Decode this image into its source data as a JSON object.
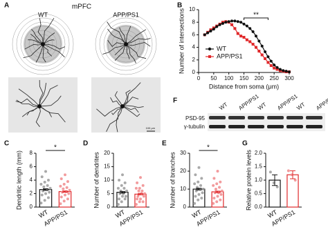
{
  "panels": {
    "labels": [
      "A",
      "B",
      "C",
      "D",
      "E",
      "F",
      "G"
    ],
    "a": {
      "title": "mPFC",
      "groups": [
        "WT",
        "APP/PS1"
      ],
      "scale_bar": "100 μm"
    },
    "f": {
      "lanes": [
        "WT",
        "APP/PS1",
        "WT",
        "APP/PS1",
        "WT",
        "APP/PS1"
      ],
      "rows": [
        "PSD-95",
        "γ-tubulin"
      ]
    }
  },
  "chart_data": [
    {
      "type": "line",
      "x_label": "Distance from soma (μm)",
      "y_label": "Number of intersections",
      "x": [
        20,
        30,
        40,
        50,
        60,
        70,
        80,
        90,
        100,
        110,
        120,
        130,
        140,
        150,
        160,
        170,
        180,
        190,
        200,
        210,
        220,
        230,
        240,
        250,
        260,
        270,
        280,
        290,
        300
      ],
      "series": [
        {
          "name": "WT",
          "color": "#111111",
          "values": [
            6.0,
            6.3,
            6.6,
            6.9,
            7.3,
            7.6,
            7.8,
            8.0,
            8.1,
            8.2,
            8.2,
            8.1,
            8.0,
            7.7,
            7.4,
            7.0,
            6.5,
            5.8,
            5.0,
            4.2,
            3.3,
            2.5,
            1.8,
            1.2,
            0.8,
            0.5,
            0.3,
            0.2,
            0.1
          ]
        },
        {
          "name": "APP/PS1",
          "color": "#e0282a",
          "values": [
            6.0,
            6.4,
            6.8,
            7.1,
            7.4,
            7.7,
            8.0,
            8.1,
            8.0,
            7.6,
            7.0,
            6.2,
            5.8,
            5.6,
            5.2,
            4.9,
            4.5,
            4.0,
            3.4,
            2.8,
            2.2,
            1.6,
            1.1,
            0.7,
            0.5,
            0.3,
            0.2,
            0.1,
            0.1
          ]
        }
      ],
      "xlim": [
        0,
        300
      ],
      "xticks": [
        0,
        50,
        100,
        150,
        200,
        250,
        300
      ],
      "ylim": [
        0,
        10
      ],
      "yticks": [
        0,
        2,
        4,
        6,
        8,
        10
      ],
      "legend": "lower left",
      "annotation": "**"
    },
    {
      "type": "bar",
      "y_label": "Dendritic length (mm)",
      "categories": [
        "WT",
        "APP/PS1"
      ],
      "values": [
        2.6,
        2.3
      ],
      "errors": [
        0.12,
        0.1
      ],
      "colors": [
        "#111111",
        "#e0282a"
      ],
      "point_colors": [
        "#9a9a9a",
        "#f08a8c"
      ],
      "points": [
        [
          0.6,
          1.0,
          1.4,
          1.8,
          2.0,
          2.2,
          2.4,
          2.6,
          2.8,
          3.0,
          3.2,
          3.4,
          3.7,
          4.0,
          4.5,
          5.3
        ],
        [
          0.5,
          0.9,
          1.2,
          1.5,
          1.8,
          2.0,
          2.2,
          2.3,
          2.5,
          2.7,
          2.9,
          3.1,
          3.4,
          3.8,
          4.2,
          4.8
        ]
      ],
      "ylim": [
        0,
        8
      ],
      "yticks": [
        0,
        2,
        4,
        6,
        8
      ],
      "annotation": "*"
    },
    {
      "type": "bar",
      "y_label": "Number of dendrites",
      "categories": [
        "WT",
        "APP/PS1"
      ],
      "values": [
        5.5,
        4.8
      ],
      "errors": [
        0.3,
        0.25
      ],
      "colors": [
        "#111111",
        "#e0282a"
      ],
      "point_colors": [
        "#9a9a9a",
        "#f08a8c"
      ],
      "points": [
        [
          1,
          2,
          3,
          3,
          4,
          4,
          5,
          5,
          6,
          6,
          7,
          7,
          8,
          9,
          10,
          12
        ],
        [
          1,
          2,
          2,
          3,
          3,
          4,
          4,
          5,
          5,
          6,
          6,
          7,
          7,
          8,
          9,
          11
        ]
      ],
      "ylim": [
        0,
        20
      ],
      "yticks": [
        0,
        5,
        10,
        15,
        20
      ]
    },
    {
      "type": "bar",
      "y_label": "Number of branches",
      "categories": [
        "WT",
        "APP/PS1"
      ],
      "values": [
        10,
        8.5
      ],
      "errors": [
        0.5,
        0.4
      ],
      "colors": [
        "#111111",
        "#e0282a"
      ],
      "point_colors": [
        "#9a9a9a",
        "#f08a8c"
      ],
      "points": [
        [
          2,
          4,
          5,
          6,
          7,
          8,
          9,
          10,
          10,
          11,
          12,
          13,
          14,
          16,
          18,
          22
        ],
        [
          2,
          3,
          4,
          5,
          6,
          7,
          8,
          8,
          9,
          10,
          11,
          12,
          13,
          14,
          16,
          20
        ]
      ],
      "ylim": [
        0,
        30
      ],
      "yticks": [
        0,
        10,
        20,
        30
      ],
      "annotation": "*"
    },
    {
      "type": "bar",
      "y_label": "Relative protein levels",
      "categories": [
        "WT",
        "APP/PS1"
      ],
      "values": [
        1.0,
        1.2
      ],
      "errors": [
        0.2,
        0.15
      ],
      "colors": [
        "#111111",
        "#e0282a"
      ],
      "point_colors": [
        "#9a9a9a",
        "#f08a8c"
      ],
      "points": [
        [
          1.3,
          0.9,
          0.75
        ],
        [
          1.35,
          1.2,
          1.0
        ]
      ],
      "ylim": [
        0,
        2
      ],
      "yticks": [
        {
          "value": 0,
          "label": "0.0"
        },
        {
          "value": 0.5,
          "label": "0.5"
        },
        {
          "value": 1,
          "label": "1.0"
        },
        {
          "value": 1.5,
          "label": "1.5"
        },
        {
          "value": 2,
          "label": "2.0"
        }
      ]
    }
  ]
}
